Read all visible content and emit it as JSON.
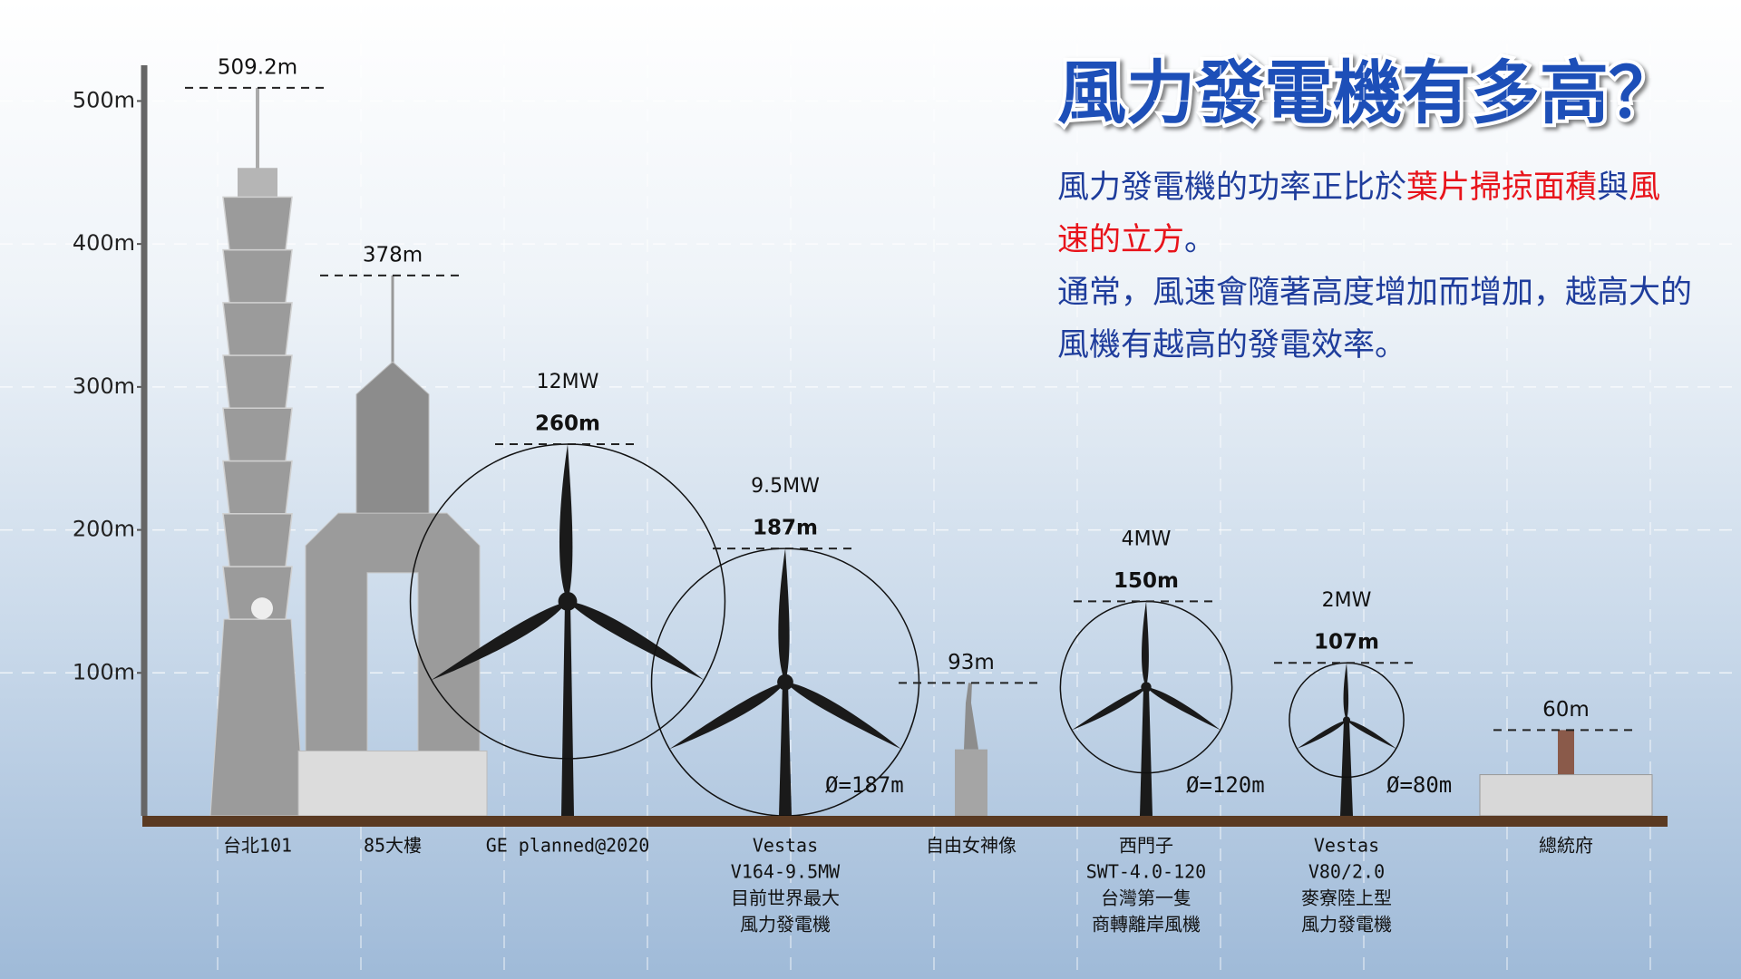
{
  "chart_data": {
    "type": "height-comparison",
    "title": "風力發電機有多高？",
    "description": [
      [
        {
          "text": "風力發電機的功率正比於"
        },
        {
          "text": "葉片掃掠面積",
          "color": "#e8141b"
        },
        {
          "text": "與"
        },
        {
          "text": "風速的立方",
          "color": "#e8141b"
        },
        {
          "text": "。"
        }
      ],
      [
        {
          "text": "通常，風速會隨著高度增加而增加，越高大的風機有越高的發電效率。"
        }
      ]
    ],
    "categories": [
      [
        "台北101"
      ],
      [
        "85大樓"
      ],
      [
        "GE planned@2020"
      ],
      [
        "Vestas",
        "V164-9.5MW",
        "目前世界最大",
        "風力發電機"
      ],
      [
        "自由女神像"
      ],
      [
        "西門子",
        "SWT-4.0-120",
        "台灣第一隻",
        "商轉離岸風機"
      ],
      [
        "Vestas",
        "V80/2.0",
        "麥寮陸上型",
        "風力發電機"
      ],
      [
        "總統府"
      ]
    ],
    "kinds": [
      "tower101",
      "tower85",
      "turbine",
      "turbine",
      "statue",
      "turbine",
      "turbine",
      "building"
    ],
    "values": [
      509.2,
      378,
      260,
      187,
      93,
      150,
      107,
      60
    ],
    "value_labels": [
      "509.2m",
      "378m",
      "260m",
      "187m",
      "93m",
      "150m",
      "107m",
      "60m"
    ],
    "power_labels": [
      null,
      null,
      "12MW",
      "9.5MW",
      null,
      "4MW",
      "2MW",
      null
    ],
    "rotor_diameters": [
      null,
      null,
      220,
      187,
      null,
      120,
      80,
      null
    ],
    "rotor_diameter_labels": [
      null,
      null,
      null,
      "Ø=187m",
      null,
      "Ø=120m",
      "Ø=80m",
      null
    ],
    "ylim": [
      0,
      525
    ],
    "yticks": [
      {
        "value": 100,
        "label": "100m"
      },
      {
        "value": 200,
        "label": "200m"
      },
      {
        "value": 300,
        "label": "300m"
      },
      {
        "value": 400,
        "label": "400m"
      },
      {
        "value": 500,
        "label": "500m"
      }
    ],
    "grid": true,
    "color": "#1a1a1a",
    "building_color": "#9b9b9b"
  }
}
